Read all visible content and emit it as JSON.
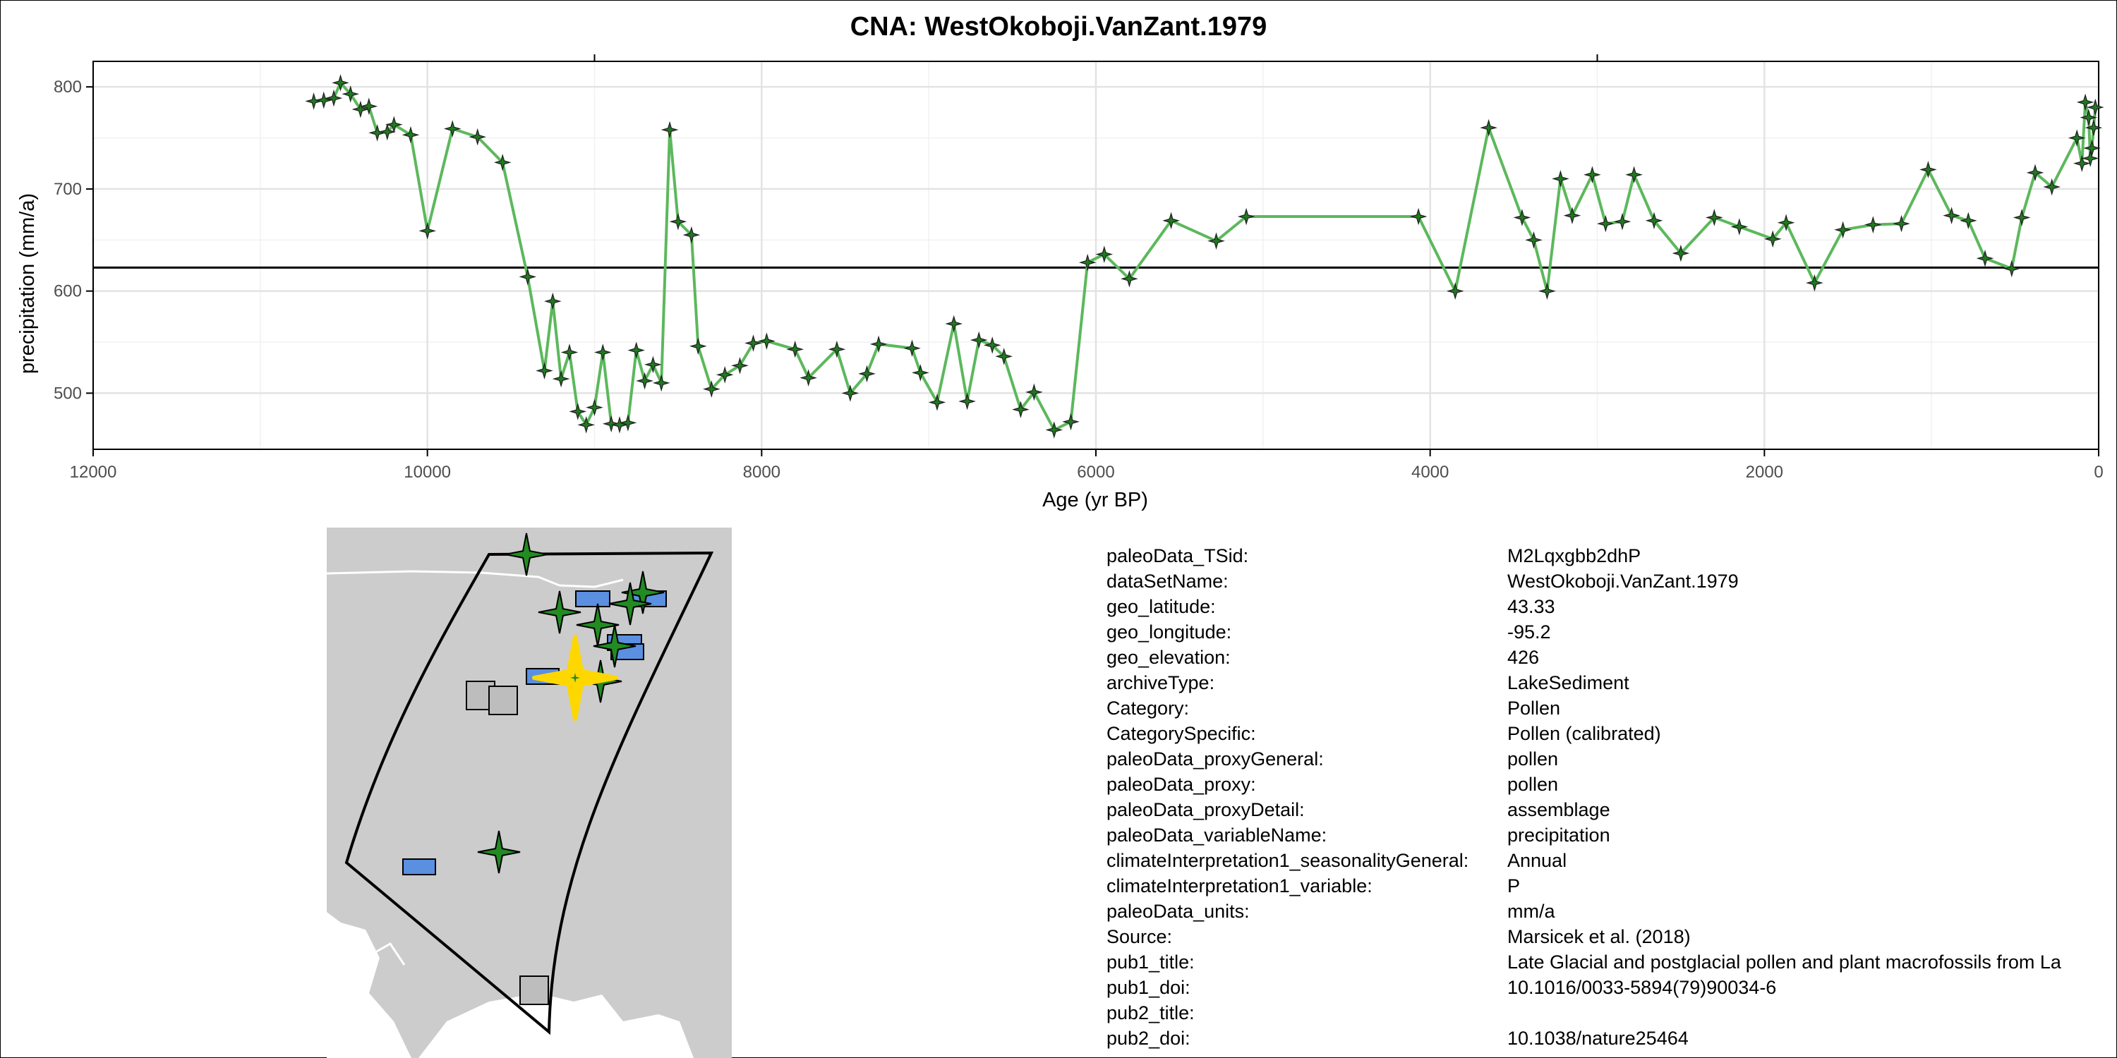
{
  "chart_data": {
    "type": "line",
    "title": "CNA: WestOkoboji.VanZant.1979",
    "xlabel": "Age (yr BP)",
    "ylabel": "precipitation (mm/a)",
    "xlim": [
      12000,
      0
    ],
    "ylim": [
      445,
      825
    ],
    "x_ticks": [
      12000,
      10000,
      8000,
      6000,
      4000,
      2000,
      0
    ],
    "x_tick_labels": [
      "12000",
      "10000",
      "8000",
      "6000",
      "4000",
      "2000",
      "0"
    ],
    "y_ticks": [
      500,
      600,
      700,
      800
    ],
    "y_tick_labels": [
      "500",
      "600",
      "700",
      "800"
    ],
    "reference_line": 623,
    "grid": true,
    "line_color": "#5cb85c",
    "marker_color": "#1f7a1f",
    "series": [
      {
        "x": [
          10680,
          10620,
          10560,
          10520,
          10460,
          10400,
          10350,
          10300,
          10240,
          10200,
          10100,
          10000,
          9850,
          9700,
          9550,
          9400,
          9300,
          9250,
          9200,
          9150,
          9100,
          9050,
          9000,
          8950,
          8900,
          8850,
          8800,
          8750,
          8700,
          8650,
          8600,
          8550,
          8500,
          8420,
          8380,
          8300,
          8220,
          8130,
          8050,
          7970,
          7800,
          7720,
          7550,
          7470,
          7370,
          7300,
          7100,
          7050,
          6950,
          6850,
          6770,
          6700,
          6620,
          6550,
          6450,
          6370,
          6250,
          6150,
          6050,
          5950,
          5800,
          5550,
          5280,
          5100,
          4070,
          3850,
          3650,
          3450,
          3380,
          3300,
          3220,
          3150,
          3030,
          2950,
          2850,
          2780,
          2660,
          2500,
          2300,
          2150,
          1950,
          1870,
          1700,
          1530,
          1350,
          1180,
          1020,
          880,
          780,
          680,
          520,
          460,
          380,
          280,
          130,
          100,
          80,
          60,
          50,
          40,
          30,
          20
        ],
        "y": [
          786,
          787,
          789,
          804,
          793,
          778,
          781,
          755,
          756,
          763,
          753,
          659,
          759,
          751,
          726,
          614,
          522,
          590,
          514,
          540,
          482,
          469,
          486,
          540,
          470,
          469,
          471,
          542,
          512,
          528,
          510,
          758,
          668,
          655,
          546,
          504,
          518,
          527,
          549,
          551,
          543,
          515,
          543,
          500,
          519,
          548,
          544,
          520,
          491,
          568,
          492,
          552,
          547,
          536,
          484,
          501,
          464,
          472,
          628,
          636,
          612,
          669,
          649,
          673,
          673,
          600,
          760,
          672,
          650,
          600,
          710,
          674,
          714,
          666,
          668,
          714,
          669,
          637,
          672,
          663,
          651,
          667,
          608,
          660,
          665,
          666,
          719,
          674,
          669,
          632,
          622,
          672,
          716,
          702,
          750,
          725,
          785,
          770,
          730,
          740,
          760,
          780
        ]
      }
    ]
  },
  "metadata": {
    "rows": [
      {
        "key": "paleoData_TSid:",
        "value": "M2Lqxgbb2dhP"
      },
      {
        "key": "dataSetName:",
        "value": "WestOkoboji.VanZant.1979"
      },
      {
        "key": "geo_latitude:",
        "value": "43.33"
      },
      {
        "key": "geo_longitude:",
        "value": "-95.2"
      },
      {
        "key": "geo_elevation:",
        "value": "426"
      },
      {
        "key": "archiveType:",
        "value": "LakeSediment"
      },
      {
        "key": "Category:",
        "value": "Pollen"
      },
      {
        "key": "CategorySpecific:",
        "value": "Pollen (calibrated)"
      },
      {
        "key": "paleoData_proxyGeneral:",
        "value": "pollen"
      },
      {
        "key": "paleoData_proxy:",
        "value": "pollen"
      },
      {
        "key": "paleoData_proxyDetail:",
        "value": "assemblage"
      },
      {
        "key": "paleoData_variableName:",
        "value": "precipitation"
      },
      {
        "key": "climateInterpretation1_seasonalityGeneral:",
        "value": "Annual"
      },
      {
        "key": "climateInterpretation1_variable:",
        "value": "P"
      },
      {
        "key": "paleoData_units:",
        "value": "mm/a"
      },
      {
        "key": "Source:",
        "value": "Marsicek et al. (2018)"
      },
      {
        "key": "pub1_title:",
        "value": "Late Glacial and postglacial pollen and plant macrofossils from La"
      },
      {
        "key": "pub1_doi:",
        "value": "10.1016/0033-5894(79)90034-6"
      },
      {
        "key": "pub2_title:",
        "value": ""
      },
      {
        "key": "pub2_doi:",
        "value": "10.1038/nature25464"
      }
    ]
  },
  "map": {
    "land_color": "#cccccc",
    "region_outline_color": "#000000",
    "pollen_site_color": "#228b22",
    "other_site_color": "#5b8fe0",
    "grey_site_color": "#bdbdbd",
    "highlight_color": "#ffd700"
  }
}
